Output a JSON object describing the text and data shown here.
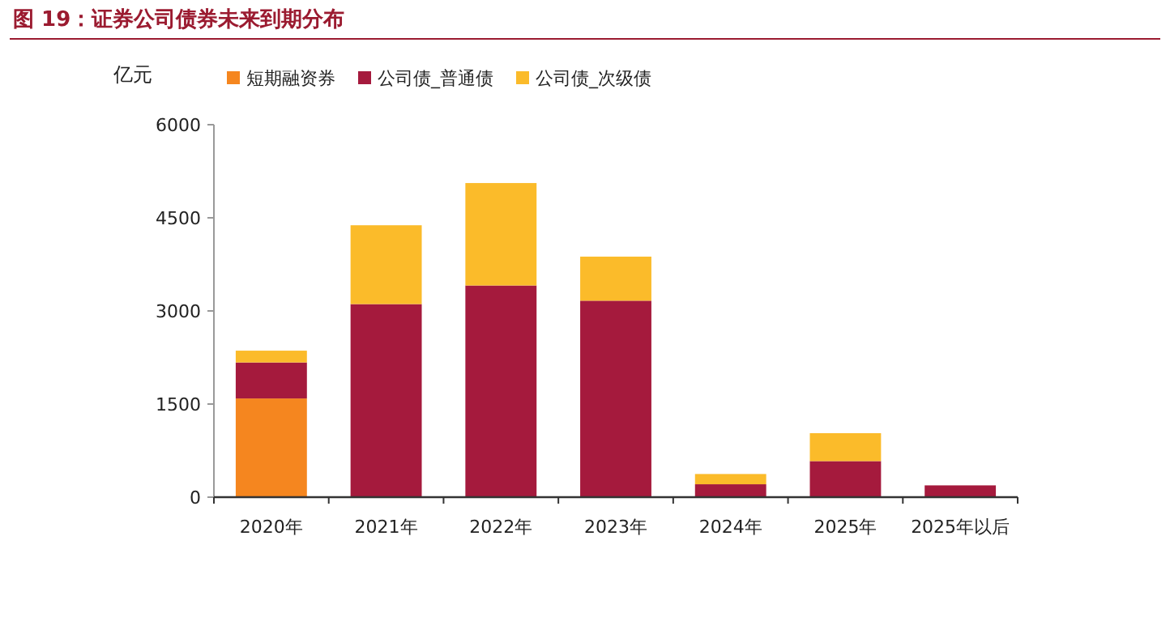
{
  "chart_data": {
    "type": "bar",
    "stacked": true,
    "title": "图 19：证券公司债券未来到期分布",
    "ylabel": "亿元",
    "categories": [
      "2020年",
      "2021年",
      "2022年",
      "2023年",
      "2024年",
      "2025年",
      "2025年以后"
    ],
    "series": [
      {
        "name": "短期融资券",
        "color": "#f5861f",
        "values": [
          1590,
          0,
          0,
          0,
          0,
          0,
          0
        ]
      },
      {
        "name": "公司债_普通债",
        "color": "#a51a3d",
        "values": [
          580,
          3110,
          3410,
          3165,
          208,
          581,
          190
        ]
      },
      {
        "name": "公司债_次级债",
        "color": "#fbbb2a",
        "values": [
          190,
          1270,
          1650,
          710,
          165,
          450,
          0
        ]
      }
    ],
    "ylim": [
      0,
      6000
    ],
    "yticks": [
      0,
      1500,
      3000,
      4500,
      6000
    ],
    "legend": "top left"
  }
}
